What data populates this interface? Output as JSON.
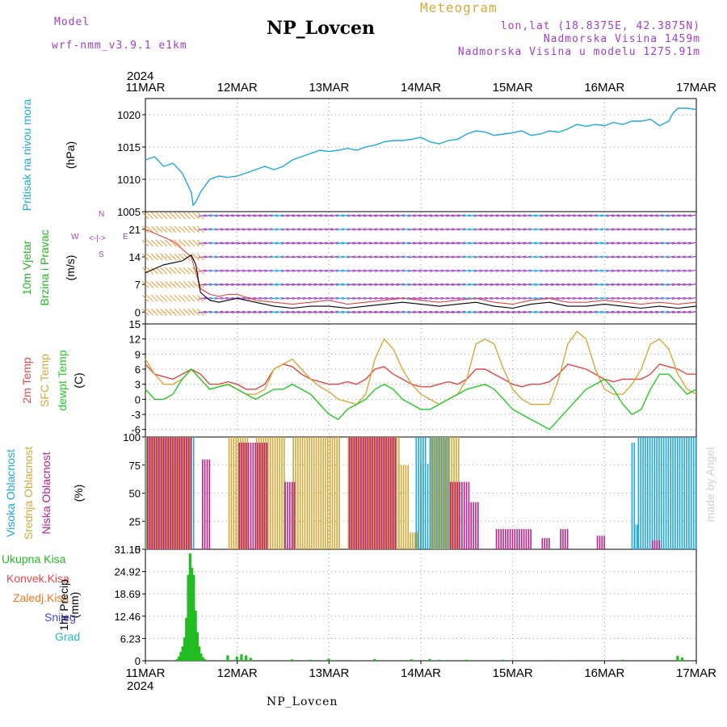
{
  "header": {
    "model_label": "Model",
    "model_value": "wrf-nmm_v3.9.1  e1km",
    "title": "NP_Lovcen",
    "meteogram_label": "Meteogram",
    "lonlat": "lon,lat (18.8375E, 42.3875N)",
    "elevation": "Nadmorska Visina 1459m",
    "model_elevation": "Nadmorska Visina u modelu 1275.91m",
    "year_top": "2024",
    "year_bottom": "2024",
    "footer_station": "NP_Lovcen",
    "watermark": "made by Angel"
  },
  "colors": {
    "pressure": "#1ea8e0",
    "wind_label": "#22b822",
    "temp2m": "#e84444",
    "sfc_temp": "#d6a838",
    "dewpt": "#22cc22",
    "cloud_high": "#1ea8e0",
    "cloud_mid": "#d6a838",
    "cloud_low": "#c0208a",
    "purple": "#a040c8",
    "precip_total": "#22bb22",
    "precip_conv": "#e84444",
    "precip_ice": "#ee7722",
    "precip_snow": "#4444dd",
    "precip_grad": "#22bbbb"
  },
  "chart_data": [
    {
      "id": "pressure",
      "type": "line",
      "ylabel_lines": [
        "Pritisak na nivou mora"
      ],
      "unit": "(hPa)",
      "yticks": [
        1005,
        1010,
        1015,
        1020
      ],
      "ylim": [
        1005,
        1022.5
      ],
      "x_days": [
        0,
        0.1,
        0.2,
        0.3,
        0.4,
        0.5,
        0.52,
        0.55,
        0.6,
        0.7,
        0.8,
        0.9,
        1.0,
        1.1,
        1.2,
        1.3,
        1.4,
        1.5,
        1.6,
        1.7,
        1.8,
        1.9,
        2.0,
        2.1,
        2.2,
        2.3,
        2.4,
        2.5,
        2.6,
        2.7,
        2.8,
        2.9,
        3.0,
        3.1,
        3.2,
        3.3,
        3.4,
        3.5,
        3.6,
        3.7,
        3.8,
        3.9,
        4.0,
        4.1,
        4.2,
        4.3,
        4.4,
        4.5,
        4.6,
        4.7,
        4.8,
        4.9,
        5.0,
        5.1,
        5.2,
        5.3,
        5.4,
        5.5,
        5.6,
        5.7,
        5.75,
        5.8,
        5.9,
        6.0
      ],
      "values": [
        1013,
        1013.5,
        1012,
        1012.5,
        1011,
        1008,
        1006,
        1006.5,
        1008,
        1010,
        1010.5,
        1010.3,
        1010.5,
        1011,
        1011.5,
        1012,
        1011.5,
        1012,
        1013,
        1013.5,
        1014,
        1014.5,
        1014.3,
        1014.5,
        1014.8,
        1014.5,
        1015,
        1015.3,
        1015.8,
        1016,
        1016,
        1016.2,
        1016.5,
        1015.8,
        1015.5,
        1016,
        1016.2,
        1017,
        1017.5,
        1017.3,
        1016.8,
        1017,
        1017.2,
        1017.5,
        1016.8,
        1017,
        1017.5,
        1017.3,
        1017.8,
        1018.5,
        1018.2,
        1018.5,
        1018.3,
        1018.8,
        1018.5,
        1019,
        1019,
        1019.3,
        1018.3,
        1019,
        1020.3,
        1021,
        1021,
        1020.8
      ]
    },
    {
      "id": "wind",
      "type": "line",
      "ylabel_lines": [
        "10m Vjetar",
        "Brzina i Pravac"
      ],
      "unit": "(m/s)",
      "compass": [
        "N",
        "E",
        "S",
        "W"
      ],
      "yticks": [
        0,
        7,
        14,
        21
      ],
      "ylim": [
        -3,
        25.5
      ],
      "x_days": [
        0,
        0.1,
        0.2,
        0.3,
        0.4,
        0.5,
        0.55,
        0.6,
        0.7,
        0.8,
        0.9,
        1.0,
        1.2,
        1.4,
        1.6,
        1.8,
        2.0,
        2.2,
        2.4,
        2.6,
        2.8,
        3.0,
        3.2,
        3.4,
        3.6,
        3.8,
        4.0,
        4.2,
        4.4,
        4.6,
        4.8,
        5.0,
        5.2,
        5.4,
        5.6,
        5.8,
        6.0
      ],
      "speed": [
        10,
        11,
        12,
        12.5,
        13,
        14.5,
        12,
        5,
        3,
        2.5,
        3,
        3.5,
        2.5,
        1.5,
        1,
        1.5,
        1.5,
        1,
        1.5,
        2,
        2.5,
        2,
        1.5,
        2,
        2.5,
        1.5,
        1,
        2,
        2.5,
        1.5,
        1.5,
        2,
        1.5,
        1,
        1.5,
        1,
        1.5
      ],
      "gust": [
        21,
        20,
        19,
        18,
        16,
        14,
        10,
        6,
        4.5,
        4,
        4.5,
        4.5,
        3,
        2.5,
        2,
        2.5,
        3,
        2,
        2.5,
        3,
        3.5,
        3,
        2.5,
        3,
        3.5,
        2.5,
        2,
        3,
        3.5,
        2.5,
        2.5,
        3,
        2.5,
        2,
        2.5,
        2,
        2.5
      ],
      "barb_levels": [
        0,
        3.5,
        7,
        10.5,
        14,
        17.5,
        21,
        24.5
      ]
    },
    {
      "id": "temperature",
      "type": "line",
      "ylabel_lines": [
        "2m Temp",
        "SFC Temp",
        "dewpt Temp"
      ],
      "unit": "(C)",
      "yticks": [
        -6,
        -3,
        0,
        3,
        6,
        9,
        12,
        15
      ],
      "ylim": [
        -7.5,
        15
      ],
      "x_days": [
        0,
        0.1,
        0.2,
        0.3,
        0.4,
        0.5,
        0.6,
        0.7,
        0.8,
        0.9,
        1.0,
        1.1,
        1.2,
        1.3,
        1.4,
        1.5,
        1.6,
        1.7,
        1.8,
        1.9,
        2.0,
        2.1,
        2.2,
        2.3,
        2.4,
        2.5,
        2.6,
        2.7,
        2.8,
        2.9,
        3.0,
        3.1,
        3.2,
        3.3,
        3.4,
        3.5,
        3.6,
        3.7,
        3.8,
        3.9,
        4.0,
        4.1,
        4.2,
        4.3,
        4.4,
        4.5,
        4.6,
        4.7,
        4.8,
        4.9,
        5.0,
        5.1,
        5.2,
        5.3,
        5.4,
        5.5,
        5.6,
        5.7,
        5.8,
        5.9,
        6.0
      ],
      "series": [
        {
          "name": "2m Temp",
          "values": [
            7,
            5,
            4.5,
            4,
            5,
            6,
            5,
            3,
            3,
            3.5,
            3,
            2,
            2,
            3,
            6,
            7,
            6.5,
            5,
            4,
            3.5,
            3,
            3,
            3.5,
            3,
            4,
            6,
            6.5,
            5,
            4,
            3,
            2.5,
            2.5,
            3,
            3.5,
            3,
            4,
            6,
            6,
            5,
            4,
            3,
            2.5,
            3,
            3,
            3.5,
            5,
            7,
            6.5,
            6,
            5,
            4,
            3.5,
            4,
            4,
            4,
            5,
            7,
            6.5,
            6,
            5,
            5
          ]
        },
        {
          "name": "SFC Temp",
          "values": [
            8,
            5,
            3,
            3,
            4,
            6,
            4,
            2,
            2.5,
            3,
            2,
            1,
            1,
            2,
            6,
            7,
            8,
            6,
            4,
            2.5,
            1.5,
            0,
            -0.5,
            -1,
            1,
            8,
            12,
            10,
            6,
            3,
            1,
            0,
            -1,
            0,
            1,
            4,
            11,
            12,
            11,
            6,
            2,
            0,
            -1,
            -1,
            -1,
            4,
            11,
            13.5,
            12,
            6,
            2,
            1,
            1,
            3,
            6,
            11,
            12,
            10,
            5,
            2,
            1
          ]
        },
        {
          "name": "dewpt Temp",
          "values": [
            2,
            0,
            0,
            1,
            4,
            6,
            4,
            2,
            2.5,
            3,
            2,
            1,
            0,
            1,
            2,
            2,
            3,
            2,
            1,
            -1,
            -3,
            -4,
            -2,
            -1,
            0,
            2,
            3,
            2,
            0,
            -1,
            -2,
            -2,
            -1,
            0,
            1,
            2,
            2.5,
            3,
            2,
            0,
            -2,
            -3,
            -4,
            -5,
            -6,
            -4,
            -2,
            0,
            2,
            3,
            4,
            2,
            -1,
            -3,
            -2,
            2,
            5,
            5,
            3,
            1,
            2
          ]
        }
      ]
    },
    {
      "id": "clouds",
      "type": "bar",
      "ylabel_lines": [
        "Visoka Oblacnost",
        "Srednja Oblacnost",
        "Niska Oblacnost"
      ],
      "unit": "(%)",
      "yticks": [
        0,
        25,
        50,
        75,
        100
      ],
      "ylim": [
        0,
        100
      ],
      "series": [
        {
          "name": "Visoka Oblacnost",
          "segments": [
            [
              0.0,
              0.55,
              100
            ],
            [
              2.95,
              3.05,
              100
            ],
            [
              3.0,
              3.1,
              76
            ],
            [
              3.0,
              3.02,
              46
            ],
            [
              3.1,
              3.3,
              100
            ],
            [
              5.3,
              5.35,
              95
            ],
            [
              5.33,
              5.36,
              22
            ],
            [
              5.37,
              6.0,
              100
            ]
          ]
        },
        {
          "name": "Srednja Oblacnost",
          "segments": [
            [
              0.0,
              0.5,
              100
            ],
            [
              0.9,
              1.1,
              100
            ],
            [
              1.2,
              1.5,
              100
            ],
            [
              1.6,
              2.1,
              100
            ],
            [
              2.2,
              2.75,
              100
            ],
            [
              2.75,
              2.85,
              75
            ],
            [
              2.85,
              2.95,
              15
            ],
            [
              3.1,
              3.4,
              100
            ],
            [
              0.3,
              0.4,
              75
            ]
          ]
        },
        {
          "name": "Niska Oblacnost",
          "segments": [
            [
              0.0,
              0.5,
              100
            ],
            [
              0.6,
              0.7,
              80
            ],
            [
              1.0,
              1.3,
              95
            ],
            [
              1.5,
              1.6,
              60
            ],
            [
              2.2,
              2.7,
              100
            ],
            [
              3.3,
              3.5,
              60
            ],
            [
              3.5,
              3.6,
              42
            ],
            [
              3.8,
              4.2,
              18
            ],
            [
              4.3,
              4.4,
              10
            ],
            [
              4.5,
              4.6,
              18
            ],
            [
              4.9,
              5.0,
              12
            ],
            [
              5.5,
              5.6,
              8
            ]
          ]
        }
      ]
    },
    {
      "id": "precip",
      "type": "bar",
      "ylabel_lines": [
        "1hr Precip"
      ],
      "unit": "(mm)",
      "yticks": [
        0,
        6.23,
        12.46,
        18.69,
        24.92,
        31.15
      ],
      "ylim": [
        0,
        31.15
      ],
      "legend": [
        "Ukupna Kisa",
        "Konvek.Kisa",
        "Zaledj.Kisa",
        "Snijeg",
        "Grad"
      ],
      "x_days": [
        0.35,
        0.37,
        0.39,
        0.41,
        0.43,
        0.45,
        0.47,
        0.49,
        0.51,
        0.53,
        0.55,
        0.57,
        0.59,
        0.61,
        0.63,
        0.65,
        0.9,
        1.0,
        1.05,
        1.1,
        1.15,
        1.6,
        1.8,
        2.0,
        2.5,
        2.9,
        3.1,
        3.2,
        3.5,
        3.9,
        4.2,
        4.6,
        5.2,
        5.8,
        5.85,
        5.9
      ],
      "values": [
        0.5,
        1.2,
        2.5,
        4,
        6.5,
        12,
        24,
        30,
        26,
        24,
        14,
        8,
        4,
        2,
        1,
        0.5,
        1.5,
        1.2,
        1.8,
        1.5,
        0.8,
        0.4,
        0.3,
        0.6,
        0.5,
        0.4,
        0.5,
        0.3,
        0.3,
        0.3,
        0.2,
        0.2,
        0.3,
        1.4,
        0.9,
        0.2
      ]
    }
  ],
  "x_axis": {
    "labels": [
      "11MAR",
      "12MAR",
      "13MAR",
      "14MAR",
      "15MAR",
      "16MAR",
      "17MAR"
    ],
    "days": 6
  }
}
